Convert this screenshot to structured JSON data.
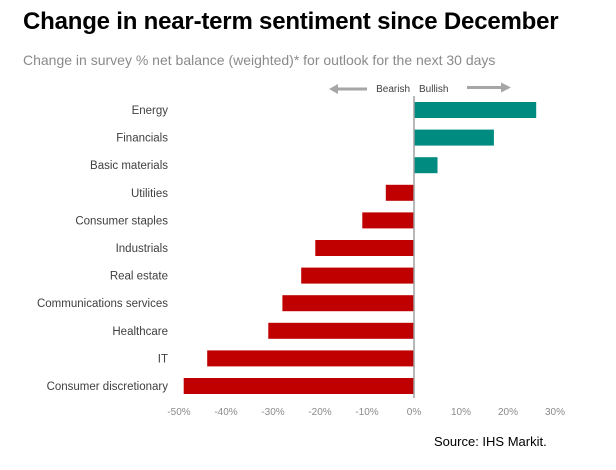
{
  "chart_data": {
    "type": "bar",
    "orientation": "horizontal",
    "title": "Change in near-term sentiment since December",
    "subtitle": "Change in survey % net balance (weighted)* for outlook for the next 30 days",
    "categories": [
      "Energy",
      "Financials",
      "Basic materials",
      "Utilities",
      "Consumer staples",
      "Industrials",
      "Real estate",
      "Communications services",
      "Healthcare",
      "IT",
      "Consumer discretionary"
    ],
    "values": [
      26,
      17,
      5,
      -6,
      -11,
      -21,
      -24,
      -28,
      -31,
      -44,
      -49
    ],
    "unit": "%",
    "xlabel": "",
    "ylabel": "",
    "xlim": [
      -50,
      30
    ],
    "xticks": [
      -50,
      -40,
      -30,
      -20,
      -10,
      0,
      10,
      20,
      30
    ],
    "xtick_labels": [
      "-50%",
      "-40%",
      "-30%",
      "-20%",
      "-10%",
      "0%",
      "10%",
      "20%",
      "30%"
    ],
    "grid": false,
    "legend": "none",
    "annotations": {
      "bearish_label": "Bearish",
      "bullish_label": "Bullish"
    },
    "colors": {
      "positive": "#008B80",
      "negative": "#C00000",
      "axis": "#A0A0A0",
      "arrow": "#A6A6A6"
    }
  },
  "source": "Source: IHS Markit."
}
